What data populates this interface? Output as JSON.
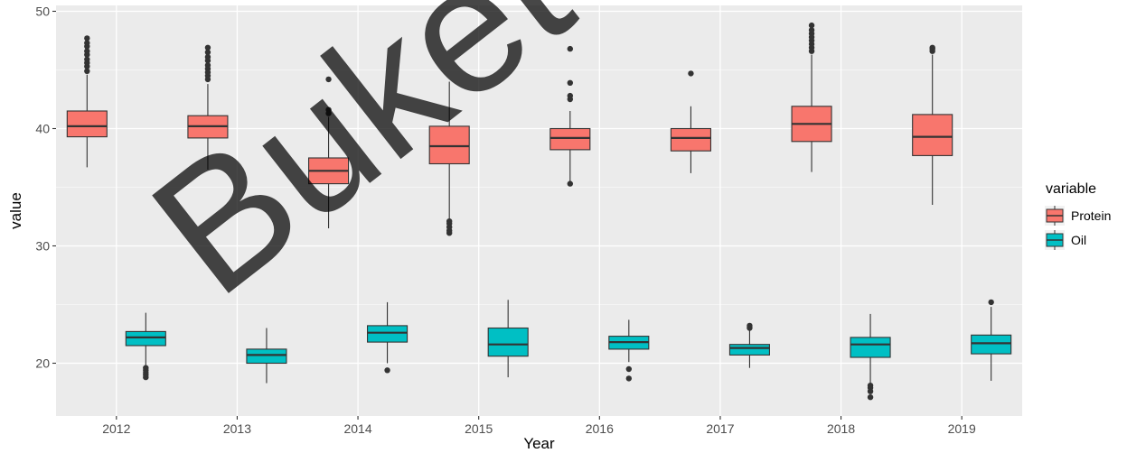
{
  "watermark": "Buketov",
  "chart_data": {
    "type": "boxplot",
    "xlabel": "Year",
    "ylabel": "value",
    "ylim": [
      15.5,
      50.5
    ],
    "yticks": [
      20,
      30,
      40,
      50
    ],
    "categories": [
      "2012",
      "2013",
      "2014",
      "2015",
      "2016",
      "2017",
      "2018",
      "2019"
    ],
    "legend": {
      "title": "variable",
      "position": "right"
    },
    "grid": true,
    "series": [
      {
        "name": "Protein",
        "color": "#f8766d",
        "boxes": [
          {
            "low": 36.7,
            "q1": 39.3,
            "median": 40.2,
            "q3": 41.5,
            "high": 44.6,
            "outliers": [
              44.9,
              45.3,
              45.6,
              45.9,
              46.3,
              46.6,
              47.0,
              47.3,
              47.7
            ]
          },
          {
            "low": 36.5,
            "q1": 39.2,
            "median": 40.2,
            "q3": 41.1,
            "high": 43.8,
            "outliers": [
              44.2,
              44.5,
              44.8,
              45.1,
              45.4,
              45.8,
              46.1,
              46.5,
              46.9
            ]
          },
          {
            "low": 31.5,
            "q1": 35.3,
            "median": 36.4,
            "q3": 37.5,
            "high": 41.0,
            "outliers": [
              41.3,
              41.6,
              44.2
            ]
          },
          {
            "low": 32.2,
            "q1": 37.0,
            "median": 38.5,
            "q3": 40.2,
            "high": 44.0,
            "outliers": [
              31.1,
              31.3,
              31.6,
              31.9,
              32.1
            ]
          },
          {
            "low": 35.5,
            "q1": 38.2,
            "median": 39.2,
            "q3": 40.0,
            "high": 41.5,
            "outliers": [
              35.3,
              42.5,
              42.8,
              43.9,
              46.8
            ]
          },
          {
            "low": 36.2,
            "q1": 38.1,
            "median": 39.2,
            "q3": 40.0,
            "high": 41.9,
            "outliers": [
              44.7
            ]
          },
          {
            "low": 36.3,
            "q1": 38.9,
            "median": 40.4,
            "q3": 41.9,
            "high": 46.3,
            "outliers": [
              46.6,
              46.9,
              47.2,
              47.5,
              47.8,
              48.1,
              48.4,
              48.8
            ]
          },
          {
            "low": 33.5,
            "q1": 37.7,
            "median": 39.3,
            "q3": 41.2,
            "high": 46.3,
            "outliers": [
              46.6,
              46.8,
              46.9
            ]
          }
        ]
      },
      {
        "name": "Oil",
        "color": "#00bfc4",
        "boxes": [
          {
            "low": 19.8,
            "q1": 21.5,
            "median": 22.2,
            "q3": 22.7,
            "high": 24.3,
            "outliers": [
              18.8,
              19.0,
              19.2,
              19.4,
              19.6
            ]
          },
          {
            "low": 18.3,
            "q1": 20.0,
            "median": 20.7,
            "q3": 21.2,
            "high": 23.0,
            "outliers": []
          },
          {
            "low": 20.0,
            "q1": 21.8,
            "median": 22.6,
            "q3": 23.2,
            "high": 25.2,
            "outliers": [
              19.4
            ]
          },
          {
            "low": 18.8,
            "q1": 20.6,
            "median": 21.6,
            "q3": 23.0,
            "high": 25.4,
            "outliers": []
          },
          {
            "low": 20.1,
            "q1": 21.2,
            "median": 21.8,
            "q3": 22.3,
            "high": 23.7,
            "outliers": [
              18.7,
              19.5
            ]
          },
          {
            "low": 19.6,
            "q1": 20.7,
            "median": 21.3,
            "q3": 21.6,
            "high": 22.8,
            "outliers": [
              23.0,
              23.2
            ]
          },
          {
            "low": 18.3,
            "q1": 20.5,
            "median": 21.6,
            "q3": 22.2,
            "high": 24.2,
            "outliers": [
              17.1,
              17.6,
              17.9,
              18.1
            ]
          },
          {
            "low": 18.5,
            "q1": 20.8,
            "median": 21.7,
            "q3": 22.4,
            "high": 24.8,
            "outliers": [
              25.2
            ]
          }
        ]
      }
    ]
  }
}
